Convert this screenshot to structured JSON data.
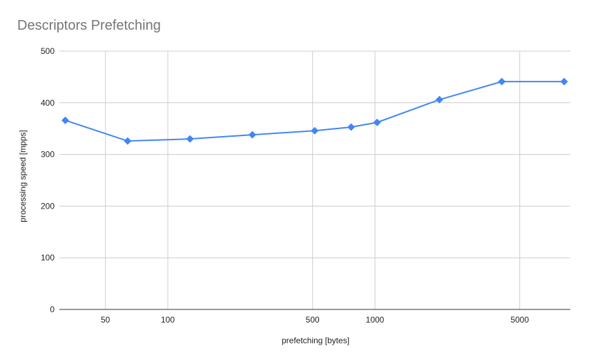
{
  "chart_data": {
    "type": "line",
    "title": "Descriptors Prefetching",
    "xlabel": "prefetching [bytes]",
    "ylabel": "processing speed [mpps]",
    "x_scale": "log",
    "x": [
      32,
      64,
      128,
      256,
      512,
      768,
      1024,
      2048,
      4096,
      8192
    ],
    "series": [
      {
        "name": "processing speed",
        "color": "#4285f4",
        "marker": "diamond",
        "values": [
          366,
          326,
          330,
          338,
          346,
          353,
          362,
          406,
          441,
          441
        ]
      }
    ],
    "x_ticks": [
      "50",
      "100",
      "500",
      "1000",
      "5000"
    ],
    "x_tick_values": [
      50,
      100,
      500,
      1000,
      5000
    ],
    "y_ticks": [
      "0",
      "100",
      "200",
      "300",
      "400",
      "500"
    ],
    "ylim": [
      0,
      500
    ],
    "grid": true,
    "legend": "none"
  },
  "colors": {
    "series": "#4285f4",
    "grid": "#cccccc",
    "baseline": "#333333",
    "title": "#757575"
  }
}
